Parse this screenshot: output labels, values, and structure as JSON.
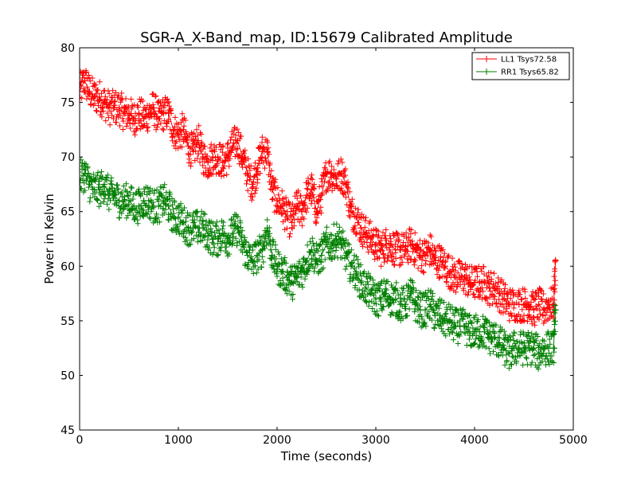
{
  "chart_data": {
    "type": "line",
    "title": "SGR-A_X-Band_map, ID:15679 Calibrated Amplitude",
    "xlabel": "Time (seconds)",
    "ylabel": "Power in Kelvin",
    "xlim": [
      0,
      5000
    ],
    "ylim": [
      45,
      80
    ],
    "xticks": [
      "0",
      "1000",
      "2000",
      "3000",
      "4000",
      "5000"
    ],
    "yticks": [
      "45",
      "50",
      "55",
      "60",
      "65",
      "70",
      "75",
      "80"
    ],
    "grid": false,
    "legend_position": "top-right",
    "marker": "+",
    "series": [
      {
        "name": "LL1 Tsys72.58",
        "color": "#ff0000",
        "points": [
          [
            0,
            76.0
          ],
          [
            50,
            77.0
          ],
          [
            100,
            76.0
          ],
          [
            150,
            75.5
          ],
          [
            200,
            75.5
          ],
          [
            250,
            75.0
          ],
          [
            300,
            74.5
          ],
          [
            350,
            74.5
          ],
          [
            400,
            74.5
          ],
          [
            450,
            74.0
          ],
          [
            500,
            74.0
          ],
          [
            550,
            73.5
          ],
          [
            600,
            74.0
          ],
          [
            650,
            73.5
          ],
          [
            700,
            74.0
          ],
          [
            750,
            74.5
          ],
          [
            800,
            73.5
          ],
          [
            850,
            74.0
          ],
          [
            900,
            74.0
          ],
          [
            950,
            72.5
          ],
          [
            1000,
            72.0
          ],
          [
            1050,
            72.5
          ],
          [
            1100,
            71.0
          ],
          [
            1150,
            70.5
          ],
          [
            1200,
            71.5
          ],
          [
            1250,
            70.0
          ],
          [
            1300,
            69.5
          ],
          [
            1350,
            70.0
          ],
          [
            1400,
            70.0
          ],
          [
            1450,
            69.5
          ],
          [
            1500,
            70.0
          ],
          [
            1550,
            71.0
          ],
          [
            1600,
            71.5
          ],
          [
            1650,
            70.0
          ],
          [
            1700,
            68.5
          ],
          [
            1750,
            67.5
          ],
          [
            1800,
            69.0
          ],
          [
            1850,
            70.5
          ],
          [
            1900,
            70.5
          ],
          [
            1950,
            67.0
          ],
          [
            2000,
            66.0
          ],
          [
            2050,
            65.5
          ],
          [
            2100,
            64.5
          ],
          [
            2150,
            64.0
          ],
          [
            2200,
            65.5
          ],
          [
            2250,
            65.0
          ],
          [
            2300,
            66.5
          ],
          [
            2350,
            67.0
          ],
          [
            2400,
            65.0
          ],
          [
            2450,
            66.5
          ],
          [
            2500,
            68.5
          ],
          [
            2550,
            68.5
          ],
          [
            2600,
            68.0
          ],
          [
            2650,
            68.5
          ],
          [
            2700,
            67.5
          ],
          [
            2750,
            65.0
          ],
          [
            2800,
            64.5
          ],
          [
            2850,
            63.5
          ],
          [
            2900,
            63.0
          ],
          [
            2950,
            62.5
          ],
          [
            3000,
            62.0
          ],
          [
            3050,
            61.5
          ],
          [
            3100,
            62.0
          ],
          [
            3150,
            62.0
          ],
          [
            3200,
            61.5
          ],
          [
            3250,
            61.5
          ],
          [
            3300,
            61.5
          ],
          [
            3350,
            62.0
          ],
          [
            3400,
            61.5
          ],
          [
            3450,
            61.0
          ],
          [
            3500,
            61.0
          ],
          [
            3550,
            61.5
          ],
          [
            3600,
            60.5
          ],
          [
            3650,
            60.5
          ],
          [
            3700,
            60.0
          ],
          [
            3750,
            59.5
          ],
          [
            3800,
            59.0
          ],
          [
            3850,
            59.0
          ],
          [
            3900,
            59.0
          ],
          [
            3950,
            58.5
          ],
          [
            4000,
            58.5
          ],
          [
            4050,
            58.5
          ],
          [
            4100,
            58.5
          ],
          [
            4150,
            58.0
          ],
          [
            4200,
            58.0
          ],
          [
            4250,
            57.5
          ],
          [
            4300,
            57.0
          ],
          [
            4350,
            56.5
          ],
          [
            4400,
            56.5
          ],
          [
            4450,
            56.5
          ],
          [
            4500,
            56.5
          ],
          [
            4550,
            56.5
          ],
          [
            4600,
            56.0
          ],
          [
            4650,
            56.5
          ],
          [
            4700,
            56.0
          ],
          [
            4750,
            56.5
          ],
          [
            4800,
            56.5
          ],
          [
            4820,
            60.5
          ]
        ]
      },
      {
        "name": "RR1 Tsys65.82",
        "color": "#007f00",
        "points": [
          [
            0,
            68.0
          ],
          [
            50,
            68.5
          ],
          [
            100,
            67.5
          ],
          [
            150,
            67.0
          ],
          [
            200,
            67.0
          ],
          [
            250,
            67.5
          ],
          [
            300,
            66.5
          ],
          [
            350,
            66.5
          ],
          [
            400,
            66.0
          ],
          [
            450,
            66.0
          ],
          [
            500,
            66.0
          ],
          [
            550,
            65.5
          ],
          [
            600,
            65.5
          ],
          [
            650,
            66.0
          ],
          [
            700,
            66.0
          ],
          [
            750,
            65.5
          ],
          [
            800,
            65.5
          ],
          [
            850,
            66.0
          ],
          [
            900,
            65.5
          ],
          [
            950,
            64.5
          ],
          [
            1000,
            64.5
          ],
          [
            1050,
            64.0
          ],
          [
            1100,
            63.5
          ],
          [
            1150,
            63.5
          ],
          [
            1200,
            63.5
          ],
          [
            1250,
            63.5
          ],
          [
            1300,
            63.0
          ],
          [
            1350,
            62.5
          ],
          [
            1400,
            62.5
          ],
          [
            1450,
            63.0
          ],
          [
            1500,
            62.5
          ],
          [
            1550,
            63.0
          ],
          [
            1600,
            63.5
          ],
          [
            1650,
            62.0
          ],
          [
            1700,
            61.0
          ],
          [
            1750,
            60.5
          ],
          [
            1800,
            61.0
          ],
          [
            1850,
            61.5
          ],
          [
            1900,
            63.5
          ],
          [
            1950,
            61.0
          ],
          [
            2000,
            60.0
          ],
          [
            2050,
            59.5
          ],
          [
            2100,
            59.0
          ],
          [
            2150,
            58.5
          ],
          [
            2200,
            59.0
          ],
          [
            2250,
            59.5
          ],
          [
            2300,
            60.5
          ],
          [
            2350,
            61.5
          ],
          [
            2400,
            60.5
          ],
          [
            2450,
            61.0
          ],
          [
            2500,
            62.0
          ],
          [
            2550,
            62.0
          ],
          [
            2600,
            62.5
          ],
          [
            2650,
            62.0
          ],
          [
            2700,
            61.0
          ],
          [
            2750,
            60.0
          ],
          [
            2800,
            59.5
          ],
          [
            2850,
            58.5
          ],
          [
            2900,
            58.0
          ],
          [
            2950,
            57.5
          ],
          [
            3000,
            57.0
          ],
          [
            3050,
            57.0
          ],
          [
            3100,
            57.5
          ],
          [
            3150,
            57.0
          ],
          [
            3200,
            57.0
          ],
          [
            3250,
            56.5
          ],
          [
            3300,
            56.5
          ],
          [
            3350,
            57.5
          ],
          [
            3400,
            56.5
          ],
          [
            3450,
            56.0
          ],
          [
            3500,
            56.0
          ],
          [
            3550,
            56.5
          ],
          [
            3600,
            55.5
          ],
          [
            3650,
            55.5
          ],
          [
            3700,
            55.0
          ],
          [
            3750,
            55.0
          ],
          [
            3800,
            54.5
          ],
          [
            3850,
            54.5
          ],
          [
            3900,
            54.5
          ],
          [
            3950,
            54.0
          ],
          [
            4000,
            54.0
          ],
          [
            4050,
            54.0
          ],
          [
            4100,
            54.0
          ],
          [
            4150,
            53.5
          ],
          [
            4200,
            53.5
          ],
          [
            4250,
            53.0
          ],
          [
            4300,
            52.5
          ],
          [
            4350,
            52.0
          ],
          [
            4400,
            52.5
          ],
          [
            4450,
            52.5
          ],
          [
            4500,
            52.5
          ],
          [
            4550,
            52.5
          ],
          [
            4600,
            52.5
          ],
          [
            4650,
            52.0
          ],
          [
            4700,
            52.5
          ],
          [
            4750,
            52.5
          ],
          [
            4800,
            52.5
          ],
          [
            4820,
            56.0
          ]
        ]
      }
    ]
  }
}
